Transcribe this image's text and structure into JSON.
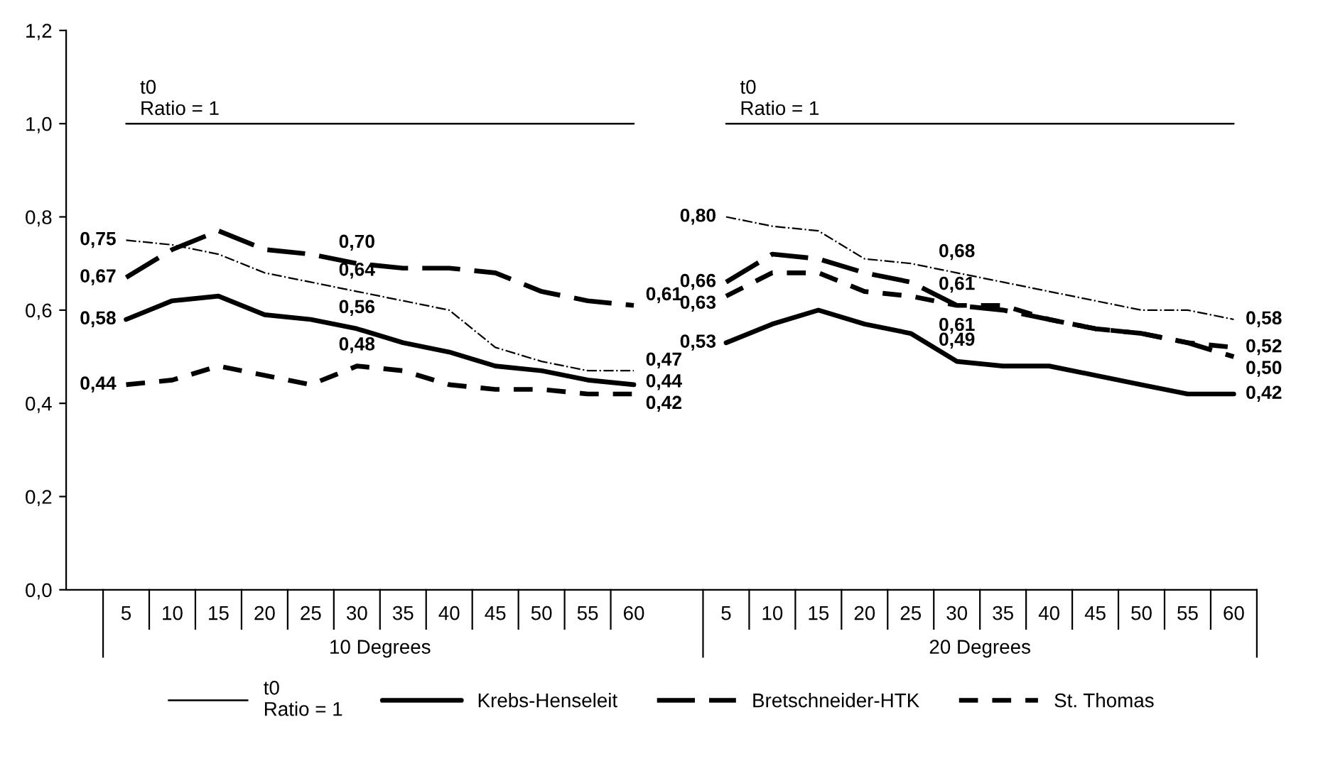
{
  "chart_data": {
    "type": "line",
    "categories": [
      "5",
      "10",
      "15",
      "20",
      "25",
      "30",
      "35",
      "40",
      "45",
      "50",
      "55",
      "60",
      null,
      "5",
      "10",
      "15",
      "20",
      "25",
      "30",
      "35",
      "40",
      "45",
      "50",
      "55",
      "60"
    ],
    "series": [
      {
        "name": "t0\nRatio = 1",
        "color": "#000000",
        "line_style": "solid",
        "values": [
          1,
          1,
          1,
          1,
          1,
          1,
          1,
          1,
          1,
          1,
          1,
          1,
          null,
          1,
          1,
          1,
          1,
          1,
          1,
          1,
          1,
          1,
          1,
          1,
          1
        ]
      },
      {
        "name": "Krebs-Henseleit",
        "color": "#000000",
        "line_style": "solid",
        "values": [
          0.58,
          0.62,
          0.63,
          0.59,
          0.58,
          0.56,
          0.53,
          0.51,
          0.48,
          0.47,
          0.45,
          0.44,
          null,
          0.53,
          0.57,
          0.6,
          0.57,
          0.55,
          0.49,
          0.48,
          0.48,
          0.46,
          0.44,
          0.42,
          0.42
        ],
        "value_labels": [
          "0,58",
          null,
          null,
          null,
          null,
          "0,56",
          null,
          null,
          null,
          null,
          null,
          "0,44",
          null,
          "0,53",
          null,
          null,
          null,
          null,
          "0,49",
          null,
          null,
          null,
          null,
          null,
          "0,42"
        ]
      },
      {
        "name": "Bretschneider-HTK",
        "color": "#000000",
        "line_style": "dashed",
        "values": [
          0.67,
          0.73,
          0.77,
          0.73,
          0.72,
          0.7,
          0.69,
          0.69,
          0.68,
          0.64,
          0.62,
          0.61,
          null,
          0.66,
          0.72,
          0.71,
          0.68,
          0.66,
          0.61,
          0.6,
          0.58,
          0.56,
          0.55,
          0.53,
          0.5
        ],
        "value_labels": [
          "0,67",
          null,
          null,
          null,
          null,
          "0,70",
          null,
          null,
          null,
          null,
          null,
          "0,61",
          null,
          "0,66",
          null,
          null,
          null,
          null,
          "0,61",
          null,
          null,
          null,
          null,
          null,
          "0,50"
        ]
      },
      {
        "name": "St. Thomas",
        "color": "#000000",
        "line_style": "dotted",
        "values": [
          0.44,
          0.45,
          0.48,
          0.46,
          0.44,
          0.48,
          0.47,
          0.44,
          0.43,
          0.43,
          0.42,
          0.42,
          null,
          0.63,
          0.68,
          0.68,
          0.64,
          0.63,
          0.61,
          0.61,
          0.58,
          0.56,
          0.55,
          0.53,
          0.52
        ],
        "value_labels": [
          "0,44",
          null,
          null,
          null,
          null,
          "0,48",
          null,
          null,
          null,
          null,
          null,
          "0,42",
          null,
          "0,63",
          null,
          null,
          null,
          null,
          "0,61",
          null,
          null,
          null,
          null,
          null,
          "0,52"
        ]
      },
      {
        "color": "#000000",
        "line_style": "dashdot",
        "values": [
          0.75,
          0.74,
          0.72,
          0.68,
          0.66,
          0.64,
          0.62,
          0.6,
          0.52,
          0.49,
          0.47,
          0.47,
          null,
          0.8,
          0.78,
          0.77,
          0.71,
          0.7,
          0.68,
          0.66,
          0.64,
          0.62,
          0.6,
          0.6,
          0.58
        ],
        "value_labels": [
          "0,75",
          null,
          null,
          null,
          null,
          "0,64",
          null,
          null,
          null,
          null,
          null,
          "0,47",
          null,
          "0,80",
          null,
          null,
          null,
          null,
          "0,68",
          null,
          null,
          null,
          null,
          null,
          "0,58"
        ]
      }
    ],
    "ylim": [
      0,
      1.2
    ],
    "yticks": [
      {
        "value": 0,
        "label": "0,0"
      },
      {
        "value": 0.2,
        "label": "0,2"
      },
      {
        "value": 0.4,
        "label": "0,4"
      },
      {
        "value": 0.6,
        "label": "0,6"
      },
      {
        "value": 0.8,
        "label": "0,8"
      },
      {
        "value": 1.0,
        "label": "1,0"
      },
      {
        "value": 1.2,
        "label": "1,2"
      }
    ],
    "annotations": [
      "t0\nRatio = 1",
      "t0\nRatio = 1",
      "10 Degrees",
      "20 Degrees"
    ],
    "grid": false,
    "legend": "bottom",
    "marker": "none"
  }
}
